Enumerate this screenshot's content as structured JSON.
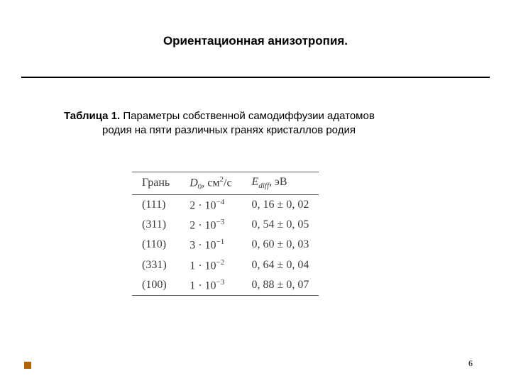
{
  "title": "Ориентационная анизотропия.",
  "caption": {
    "lead": "Таблица 1.",
    "rest_line1": " Параметры собственной самодиффузии адатомов",
    "line2": "родия на пяти различных гранях кристаллов родия"
  },
  "table": {
    "headers": {
      "facet": "Грань",
      "d0_sym": "D",
      "d0_sub": "0",
      "d0_unit_pre": ", см",
      "d0_unit_sup": "2",
      "d0_unit_post": "/с",
      "e_sym": "E",
      "e_sub": "diff",
      "e_unit": ", эВ"
    },
    "rows": [
      {
        "facet": "(111)",
        "d0_m": "2 · 10",
        "d0_exp": "−4",
        "e": "0, 16 ± 0, 02"
      },
      {
        "facet": "(311)",
        "d0_m": "2 · 10",
        "d0_exp": "−3",
        "e": "0, 54 ± 0, 05"
      },
      {
        "facet": "(110)",
        "d0_m": "3 · 10",
        "d0_exp": "−1",
        "e": "0, 60 ± 0, 03"
      },
      {
        "facet": "(331)",
        "d0_m": "1 · 10",
        "d0_exp": "−2",
        "e": "0, 64 ± 0, 04"
      },
      {
        "facet": "(100)",
        "d0_m": "1 · 10",
        "d0_exp": "−3",
        "e": "0, 88 ± 0, 07"
      }
    ]
  },
  "page_number": "6",
  "colors": {
    "accent": "#b06500",
    "rule": "#000000",
    "table_rule": "#555555",
    "text": "#000000",
    "table_text": "#3a3a3a",
    "background": "#ffffff"
  }
}
